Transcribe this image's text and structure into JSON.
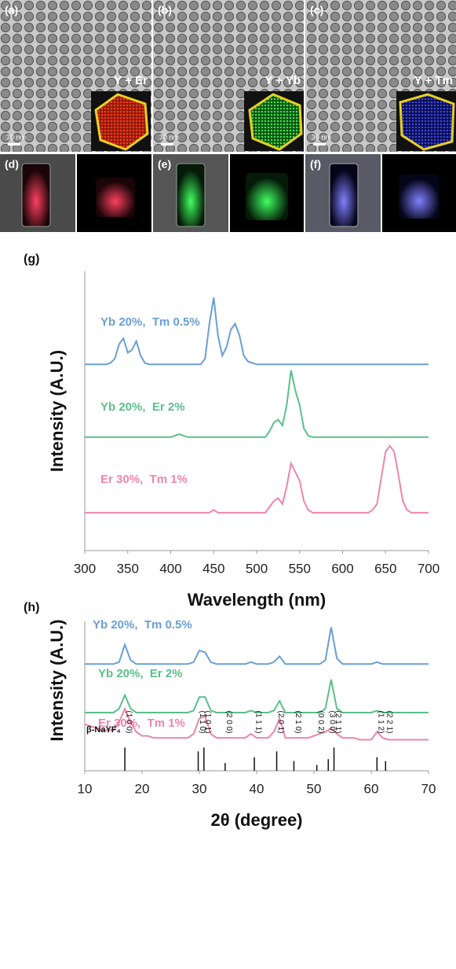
{
  "panels": [
    {
      "label": "(a)",
      "title": "Y + Er",
      "scale": "30 nm"
    },
    {
      "label": "(b)",
      "title": "Y + Yb",
      "scale": "30 nm"
    },
    {
      "label": "(c)",
      "title": "Y + Tm",
      "scale": "30 nm"
    }
  ],
  "photos": [
    {
      "label": "(d)"
    },
    {
      "label": "(e)"
    },
    {
      "label": "(f)"
    }
  ],
  "chart_data": [
    {
      "type": "line",
      "title": "(g)",
      "x_label": "Wavelength (nm)",
      "y_label": "Intensity (A.U.)",
      "x": [
        300,
        305,
        310,
        315,
        320,
        325,
        330,
        335,
        340,
        345,
        350,
        355,
        360,
        365,
        370,
        375,
        380,
        385,
        390,
        395,
        400,
        405,
        410,
        415,
        420,
        425,
        430,
        435,
        440,
        445,
        450,
        455,
        460,
        465,
        470,
        475,
        480,
        485,
        490,
        495,
        500,
        505,
        510,
        515,
        520,
        525,
        530,
        535,
        540,
        545,
        550,
        555,
        560,
        565,
        570,
        575,
        580,
        585,
        590,
        595,
        600,
        605,
        610,
        615,
        620,
        625,
        630,
        635,
        640,
        645,
        650,
        655,
        660,
        665,
        670,
        675,
        680,
        685,
        690,
        695,
        700
      ],
      "xlim": [
        300,
        700
      ],
      "xticks": [
        300,
        350,
        400,
        450,
        500,
        550,
        600,
        650,
        700
      ],
      "ylim": [
        0,
        96
      ],
      "series": [
        {
          "name": "Yb 20%,  Tm 0.5%",
          "color": "#6a9fd4",
          "values": [
            64,
            64,
            64,
            64,
            64,
            64,
            64.5,
            66,
            71,
            73,
            68,
            69,
            72,
            67,
            64.5,
            64,
            64,
            64,
            64,
            64,
            64,
            64,
            64,
            64,
            64,
            64,
            64,
            64,
            66,
            78,
            87,
            74,
            67,
            70,
            76,
            78,
            74,
            67,
            65,
            64.5,
            64,
            64,
            64,
            64,
            64,
            64,
            64,
            64,
            64,
            64,
            64,
            64,
            64,
            64,
            64,
            64,
            64,
            64,
            64,
            64,
            64,
            64,
            64,
            64,
            64,
            64,
            64,
            64,
            64,
            64,
            64,
            64,
            64,
            64,
            64,
            64,
            64,
            64,
            64,
            64,
            64
          ]
        },
        {
          "name": "Yb 20%,  Er 2%",
          "color": "#5bbf8a",
          "values": [
            39,
            39,
            39,
            39,
            39,
            39,
            39,
            39,
            39,
            39,
            39,
            39,
            39,
            39,
            39,
            39,
            39,
            39,
            39,
            39,
            39,
            39.5,
            40,
            39.5,
            39,
            39,
            39,
            39,
            39,
            39,
            39,
            39,
            39,
            39,
            39,
            39,
            39,
            39,
            39,
            39,
            39,
            39,
            39,
            41,
            44,
            45,
            43,
            50,
            62,
            55,
            50,
            42,
            39.5,
            39,
            39,
            39,
            39,
            39,
            39,
            39,
            39,
            39,
            39,
            39,
            39,
            39,
            39,
            39,
            39,
            39,
            39,
            39,
            39,
            39,
            39,
            39,
            39,
            39,
            39,
            39,
            39
          ]
        },
        {
          "name": "Er 30%,  Tm 1%",
          "color": "#ee86a8",
          "values": [
            13,
            13,
            13,
            13,
            13,
            13,
            13,
            13,
            13,
            13,
            13,
            13,
            13,
            13,
            13,
            13,
            13,
            13,
            13,
            13,
            13,
            13,
            13,
            13,
            13,
            13,
            13,
            13,
            13,
            13,
            14,
            13,
            13,
            13,
            13,
            13,
            13,
            13,
            13,
            13,
            13,
            13,
            13,
            15,
            17,
            18,
            16,
            22,
            30,
            27,
            24,
            17,
            14,
            13,
            13,
            13,
            13,
            13,
            13,
            13,
            13,
            13,
            13,
            13,
            13,
            13,
            13,
            14,
            16,
            25,
            34,
            36,
            34,
            26,
            17,
            14,
            13,
            13,
            13,
            13,
            13
          ]
        }
      ]
    },
    {
      "type": "line",
      "title": "(h)",
      "x_label": "2θ (degree)",
      "y_label": "Intensity (A.U.)",
      "x": [
        10,
        11,
        12,
        13,
        14,
        15,
        16,
        17,
        18,
        19,
        20,
        21,
        22,
        23,
        24,
        25,
        26,
        27,
        28,
        29,
        30,
        31,
        32,
        33,
        34,
        35,
        36,
        37,
        38,
        39,
        40,
        41,
        42,
        43,
        44,
        45,
        46,
        47,
        48,
        49,
        50,
        51,
        52,
        53,
        54,
        55,
        56,
        57,
        58,
        59,
        60,
        61,
        62,
        63,
        64,
        65,
        66,
        67,
        68,
        69,
        70
      ],
      "xlim": [
        10,
        70
      ],
      "xticks": [
        10,
        20,
        30,
        40,
        50,
        60,
        70
      ],
      "ylim": [
        -13,
        64
      ],
      "series": [
        {
          "name": "Yb 20%,  Tm 0.5%",
          "color": "#6a9fd4",
          "values": [
            42,
            42,
            42,
            42,
            42,
            42,
            43,
            52,
            44,
            42,
            42,
            42,
            42,
            42,
            42,
            42,
            42,
            42,
            42,
            43,
            49,
            48,
            43,
            42,
            42,
            42,
            42,
            42,
            42,
            43,
            42,
            42,
            42,
            43,
            46,
            42,
            42,
            42,
            42,
            42,
            42,
            42,
            44,
            61,
            45,
            42,
            42,
            42,
            42,
            42,
            42,
            43,
            42,
            42,
            42,
            42,
            42,
            42,
            42,
            42,
            42
          ]
        },
        {
          "name": "Yb 20%,  Er 2%",
          "color": "#5bbf8a",
          "values": [
            17,
            17,
            17,
            17,
            17,
            17,
            19,
            26,
            19,
            17,
            17,
            17,
            17,
            17,
            17,
            17,
            17,
            17,
            17,
            18,
            25,
            25,
            18,
            17,
            17,
            17,
            17,
            17,
            17,
            18,
            17,
            17,
            17,
            18,
            23,
            17,
            17,
            17,
            17,
            17,
            17,
            17,
            19,
            34,
            19,
            17,
            17,
            17,
            17,
            17,
            17,
            18,
            17,
            17,
            17,
            17,
            17,
            17,
            17,
            17,
            17
          ]
        },
        {
          "name": "Er 30%,  Tm 1%",
          "color": "#ee86a8",
          "values": [
            11,
            10,
            9,
            8,
            8,
            8,
            12,
            19,
            12,
            7,
            5,
            5,
            4,
            4,
            4,
            4,
            4,
            4,
            4,
            6,
            14,
            15,
            6,
            4,
            4,
            4,
            4,
            4,
            4,
            6,
            4,
            4,
            4,
            7,
            14,
            4,
            4,
            4,
            4,
            4,
            5,
            6,
            7,
            9,
            6,
            4,
            4,
            4,
            3,
            3,
            3,
            7,
            4,
            3,
            3,
            3,
            3,
            3,
            3,
            3,
            3
          ]
        }
      ],
      "reference": {
        "name": "β-NaYF₄",
        "x": [
          17,
          29.8,
          30.8,
          34.5,
          39.6,
          43.5,
          46.5,
          50.5,
          52.5,
          53.5,
          61,
          62.5
        ],
        "values": [
          -1,
          -3,
          -1,
          -9,
          -6,
          -3,
          -8,
          -10,
          -7,
          -1,
          -6,
          -8
        ],
        "labels": [
          "(1 0 0)",
          "(1 1 0)",
          "(1 0 1)",
          "(2 0 0)",
          "(1 1 1)",
          "(2 0 1)",
          "(2 1 0)",
          "(0 0 2)",
          "(3 0 0)",
          "(2 1 1)",
          "(1 1 2)",
          "(2 2 1)"
        ]
      }
    }
  ]
}
